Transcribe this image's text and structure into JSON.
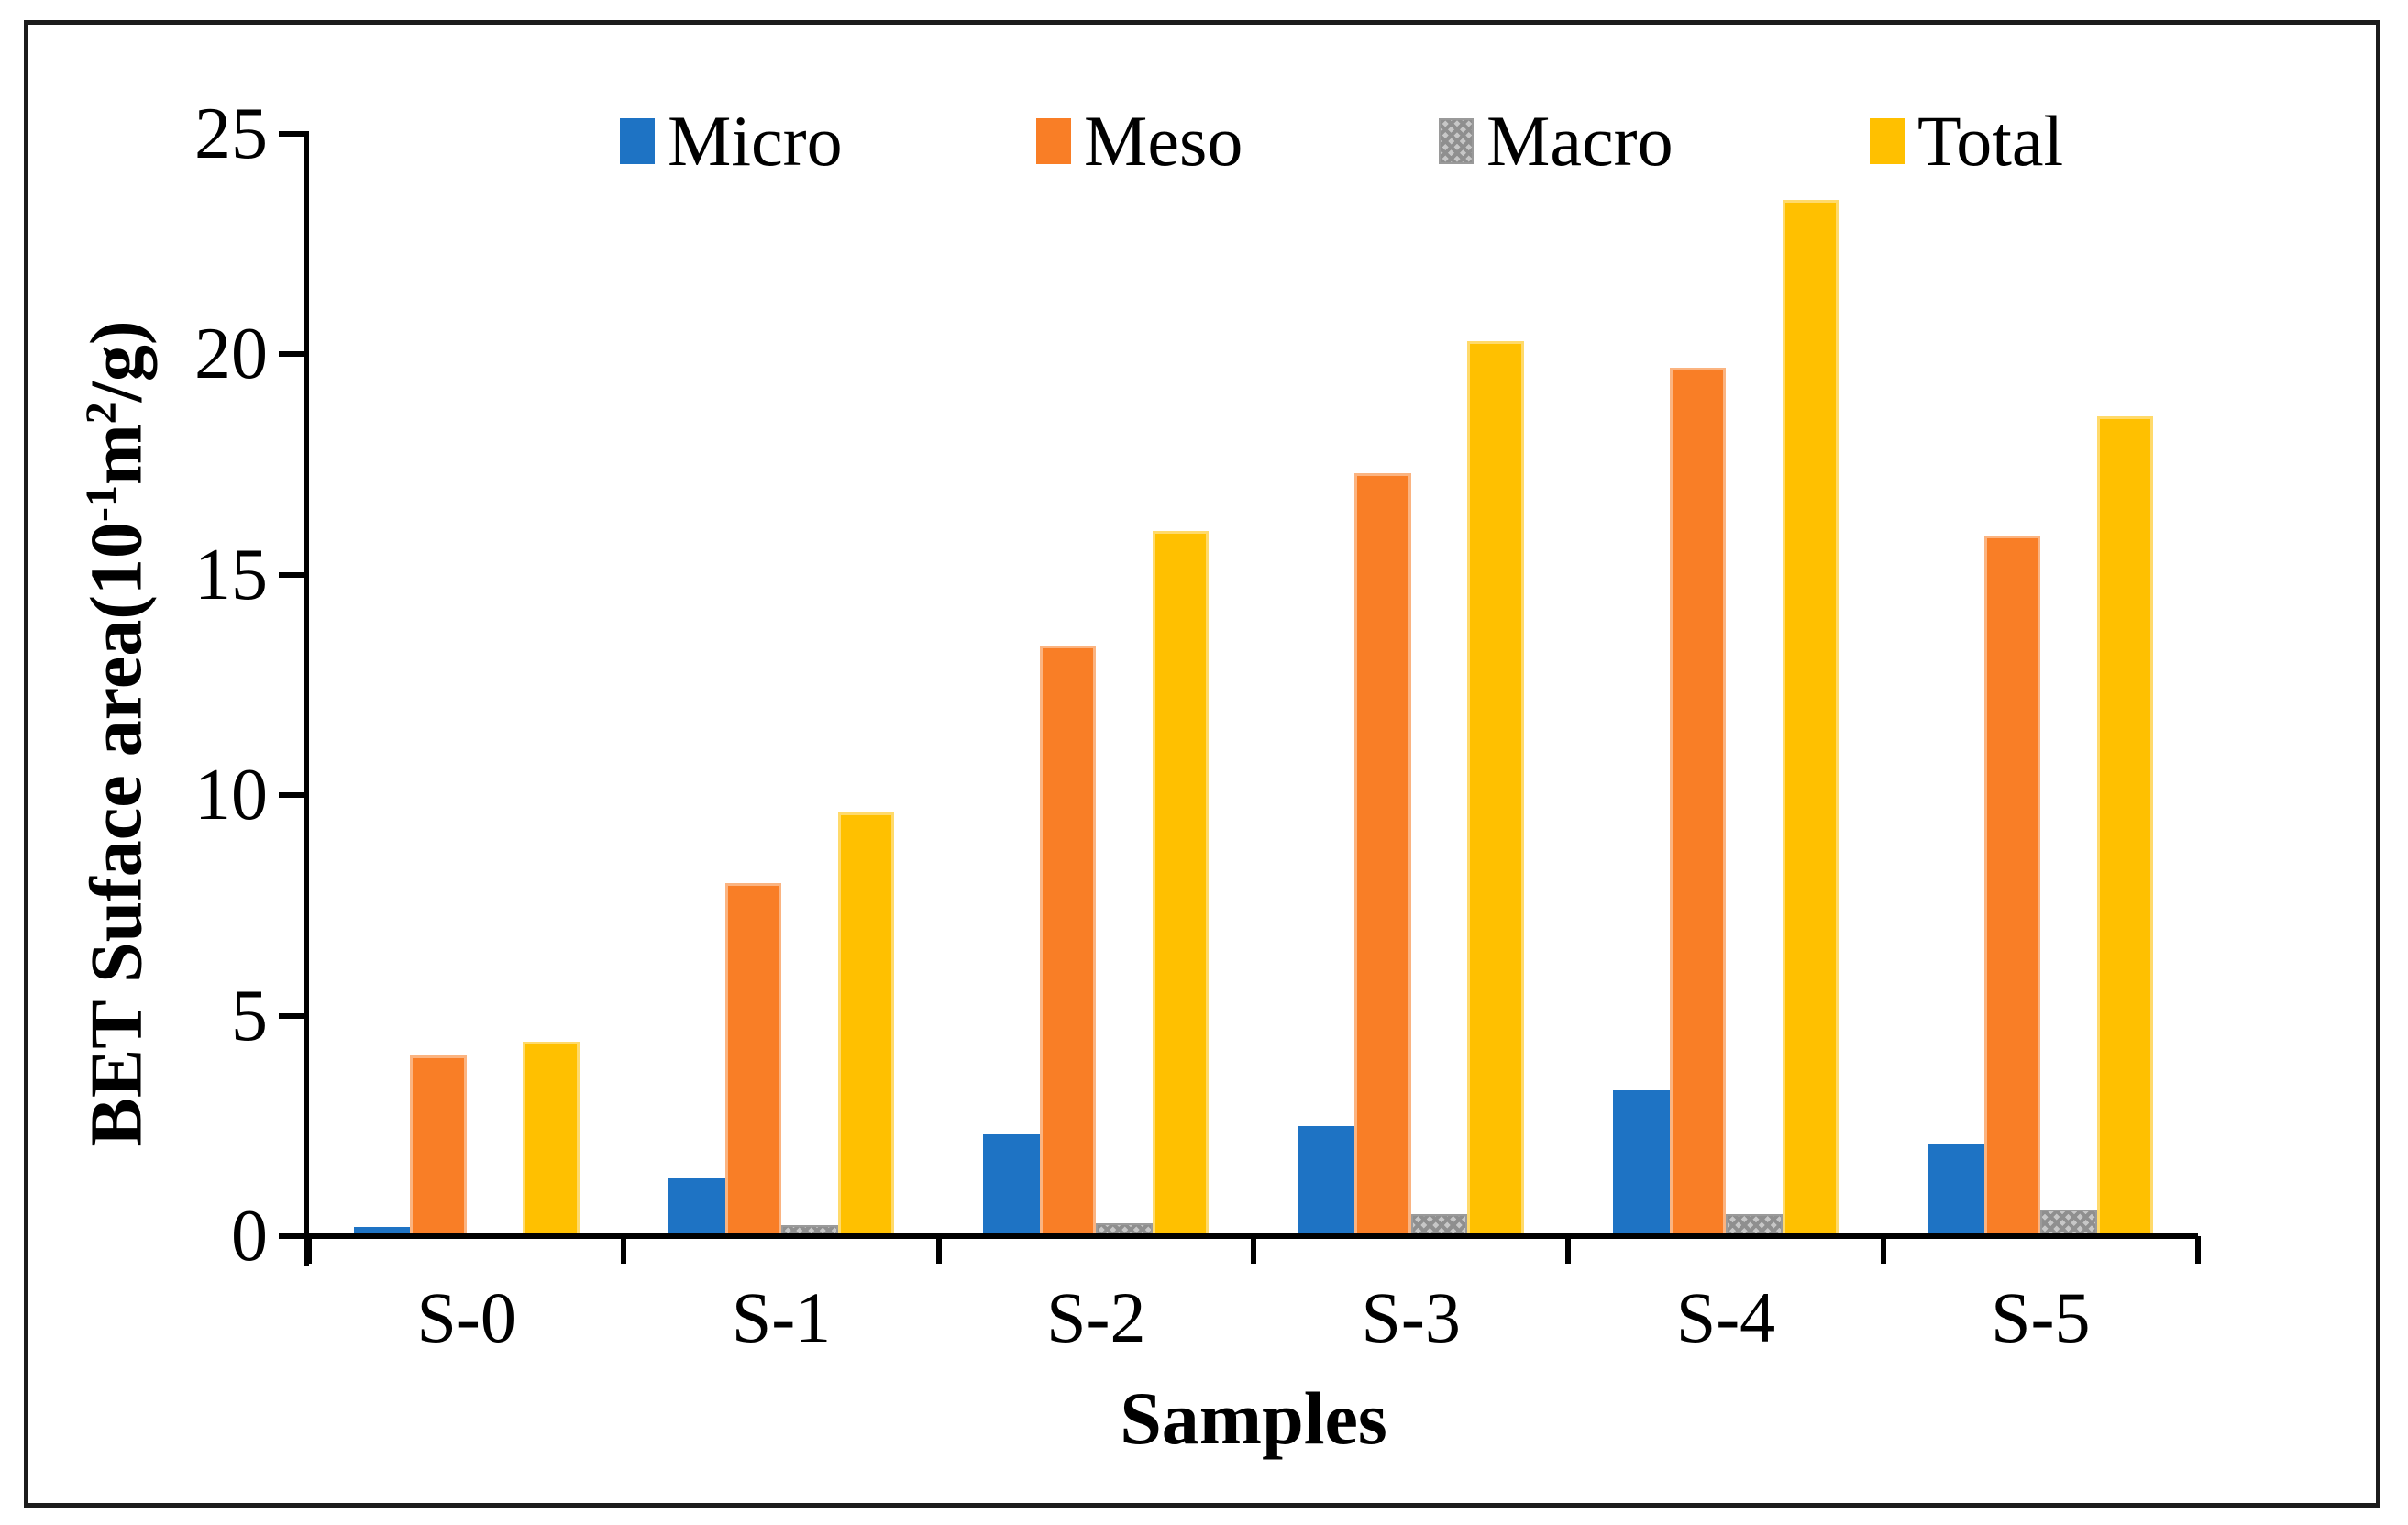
{
  "figure": {
    "x_axis_title": "Samples",
    "y_axis_title": {
      "prefix": "BET Suface area(10",
      "sup1": "-1",
      "mid": "m",
      "sup2": "2",
      "suffix": "/g)"
    }
  },
  "chart_data": {
    "type": "bar",
    "title": "",
    "xlabel": "Samples",
    "ylabel": "BET Suface area(10^-1 m^2/g)",
    "categories": [
      "S-0",
      "S-1",
      "S-2",
      "S-3",
      "S-4",
      "S-5"
    ],
    "series": [
      {
        "name": "Micro",
        "color": "#1e73c4",
        "edge": false,
        "pattern": false,
        "values": [
          0.2,
          1.3,
          2.3,
          2.5,
          3.3,
          2.1
        ]
      },
      {
        "name": "Meso",
        "color": "#f97e26",
        "edge": true,
        "pattern": false,
        "values": [
          4.1,
          8.0,
          13.4,
          17.3,
          19.7,
          15.9
        ]
      },
      {
        "name": "Macro",
        "color": "#ababab",
        "edge": false,
        "pattern": true,
        "values": [
          0.0,
          0.25,
          0.3,
          0.5,
          0.5,
          0.6
        ]
      },
      {
        "name": "Total",
        "color": "#ffc000",
        "edge": true,
        "pattern": false,
        "values": [
          4.4,
          9.6,
          16.0,
          20.3,
          23.5,
          18.6
        ]
      }
    ],
    "ylim": [
      0,
      25
    ],
    "yticks": [
      0,
      5,
      10,
      15,
      20,
      25
    ],
    "grid": false,
    "legend_position": "top"
  }
}
